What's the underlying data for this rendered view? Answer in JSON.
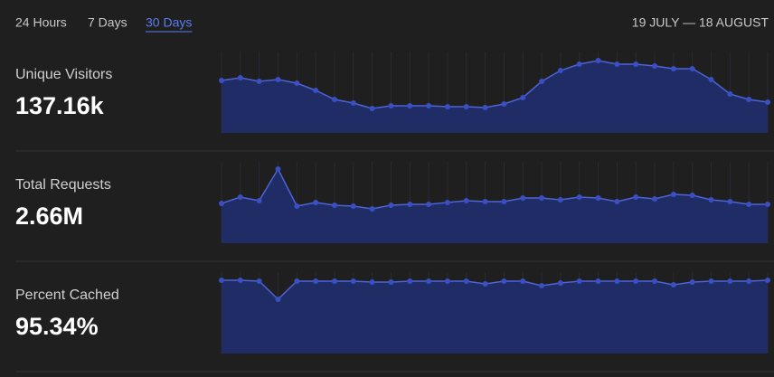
{
  "tabs": [
    "24 Hours",
    "7 Days",
    "30 Days"
  ],
  "active_tab": 2,
  "date_range": "19 JULY — 18 AUGUST",
  "metrics": [
    {
      "label": "Unique Visitors",
      "value": "137.16k",
      "chart": {
        "type": "area",
        "color": "#4d63d8",
        "fill": "#1f2c66",
        "ylim": [
          0,
          90
        ],
        "values": [
          58,
          61,
          57,
          59,
          55,
          47,
          37,
          33,
          27,
          30,
          30,
          30,
          29,
          29,
          28,
          32,
          39,
          57,
          69,
          76,
          80,
          76,
          76,
          74,
          71,
          71,
          59,
          43,
          37,
          34
        ]
      }
    },
    {
      "label": "Total Requests",
      "value": "2.66M",
      "chart": {
        "type": "area",
        "color": "#4d63d8",
        "fill": "#1f2c66",
        "ylim": [
          0,
          90
        ],
        "values": [
          44,
          51,
          47,
          82,
          41,
          45,
          42,
          41,
          38,
          42,
          43,
          43,
          45,
          47,
          46,
          46,
          50,
          50,
          48,
          51,
          50,
          46,
          51,
          49,
          54,
          53,
          48,
          46,
          43,
          43
        ]
      }
    },
    {
      "label": "Percent Cached",
      "value": "95.34%",
      "chart": {
        "type": "area",
        "color": "#4d63d8",
        "fill": "#1f2c66",
        "ylim": [
          0,
          90
        ],
        "values": [
          81,
          81,
          80,
          60,
          80,
          80,
          80,
          80,
          79,
          79,
          80,
          80,
          80,
          80,
          77,
          80,
          80,
          75,
          78,
          80,
          80,
          80,
          80,
          80,
          76,
          79,
          80,
          80,
          80,
          81
        ]
      }
    }
  ]
}
